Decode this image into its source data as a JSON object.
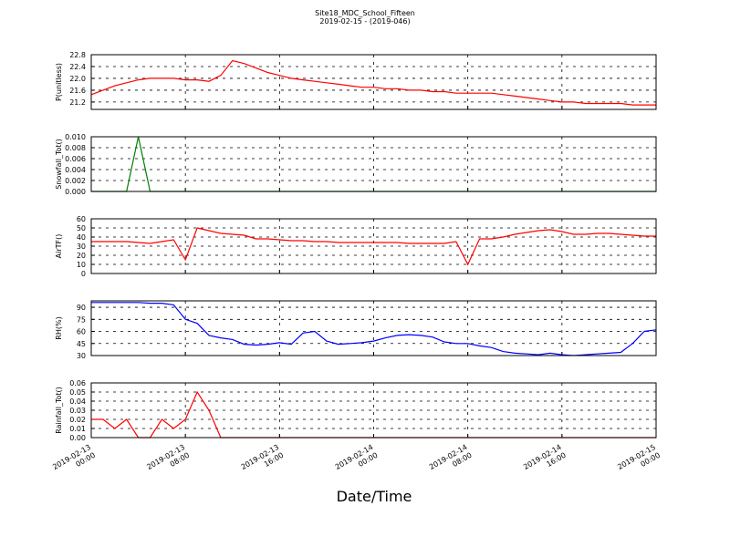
{
  "chart_data": [
    {
      "type": "line",
      "title": "Site18_MDC_School_Fifteen",
      "subtitle": "2019-02-15 - (2019-046)",
      "ylabel": "P(unitless)",
      "color": "#ff0000",
      "grid": true,
      "x": [
        "2019-02-13 00:00",
        "2019-02-13 01:00",
        "2019-02-13 02:00",
        "2019-02-13 03:00",
        "2019-02-13 04:00",
        "2019-02-13 05:00",
        "2019-02-13 06:00",
        "2019-02-13 07:00",
        "2019-02-13 08:00",
        "2019-02-13 09:00",
        "2019-02-13 10:00",
        "2019-02-13 11:00",
        "2019-02-13 12:00",
        "2019-02-13 13:00",
        "2019-02-13 14:00",
        "2019-02-13 15:00",
        "2019-02-13 16:00",
        "2019-02-13 17:00",
        "2019-02-13 18:00",
        "2019-02-13 19:00",
        "2019-02-13 20:00",
        "2019-02-13 21:00",
        "2019-02-13 22:00",
        "2019-02-13 23:00",
        "2019-02-14 00:00",
        "2019-02-14 01:00",
        "2019-02-14 02:00",
        "2019-02-14 03:00",
        "2019-02-14 04:00",
        "2019-02-14 05:00",
        "2019-02-14 06:00",
        "2019-02-14 07:00",
        "2019-02-14 08:00",
        "2019-02-14 09:00",
        "2019-02-14 10:00",
        "2019-02-14 11:00",
        "2019-02-14 12:00",
        "2019-02-14 13:00",
        "2019-02-14 14:00",
        "2019-02-14 15:00",
        "2019-02-14 16:00",
        "2019-02-14 17:00",
        "2019-02-14 18:00",
        "2019-02-14 19:00",
        "2019-02-14 20:00",
        "2019-02-14 21:00",
        "2019-02-14 22:00",
        "2019-02-14 23:00",
        "2019-02-15 00:00"
      ],
      "values": [
        21.45,
        21.6,
        21.75,
        21.85,
        21.95,
        22.0,
        22.0,
        22.0,
        21.95,
        21.95,
        21.9,
        22.1,
        22.6,
        22.5,
        22.35,
        22.2,
        22.1,
        22.0,
        21.95,
        21.9,
        21.85,
        21.8,
        21.75,
        21.7,
        21.7,
        21.65,
        21.65,
        21.6,
        21.6,
        21.55,
        21.55,
        21.5,
        21.5,
        21.5,
        21.5,
        21.45,
        21.4,
        21.35,
        21.3,
        21.25,
        21.2,
        21.2,
        21.15,
        21.15,
        21.15,
        21.15,
        21.1,
        21.1,
        21.1
      ],
      "ylim": [
        20.95,
        22.8
      ],
      "yticks": [
        {
          "value": 21.2,
          "label": "21.2"
        },
        {
          "value": 21.6,
          "label": "21.6"
        },
        {
          "value": 22.0,
          "label": "22.0"
        },
        {
          "value": 22.4,
          "label": "22.4"
        },
        {
          "value": 22.8,
          "label": "22.8"
        }
      ]
    },
    {
      "type": "line",
      "ylabel": "Snowfall_Tot()",
      "color": "#008000",
      "grid": true,
      "x": [
        "2019-02-13 00:00",
        "2019-02-13 01:00",
        "2019-02-13 02:00",
        "2019-02-13 03:00",
        "2019-02-13 04:00",
        "2019-02-13 05:00",
        "2019-02-13 06:00",
        "2019-02-13 07:00",
        "2019-02-13 08:00",
        "2019-02-13 09:00",
        "2019-02-13 10:00",
        "2019-02-13 11:00",
        "2019-02-13 12:00",
        "2019-02-13 13:00",
        "2019-02-13 14:00",
        "2019-02-13 15:00",
        "2019-02-13 16:00",
        "2019-02-13 17:00",
        "2019-02-13 18:00",
        "2019-02-13 19:00",
        "2019-02-13 20:00",
        "2019-02-13 21:00",
        "2019-02-13 22:00",
        "2019-02-13 23:00",
        "2019-02-14 00:00",
        "2019-02-14 01:00",
        "2019-02-14 02:00",
        "2019-02-14 03:00",
        "2019-02-14 04:00",
        "2019-02-14 05:00",
        "2019-02-14 06:00",
        "2019-02-14 07:00",
        "2019-02-14 08:00",
        "2019-02-14 09:00",
        "2019-02-14 10:00",
        "2019-02-14 11:00",
        "2019-02-14 12:00",
        "2019-02-14 13:00",
        "2019-02-14 14:00",
        "2019-02-14 15:00",
        "2019-02-14 16:00",
        "2019-02-14 17:00",
        "2019-02-14 18:00",
        "2019-02-14 19:00",
        "2019-02-14 20:00",
        "2019-02-14 21:00",
        "2019-02-14 22:00",
        "2019-02-14 23:00",
        "2019-02-15 00:00"
      ],
      "values": [
        0,
        0,
        0,
        0,
        0.01,
        0,
        0,
        0,
        0,
        0,
        0,
        0,
        0,
        0,
        0,
        0,
        0,
        0,
        0,
        0,
        0,
        0,
        0,
        0,
        0,
        0,
        0,
        0,
        0,
        0,
        0,
        0,
        0,
        0,
        0,
        0,
        0,
        0,
        0,
        0,
        0,
        0,
        0,
        0,
        0,
        0,
        0,
        0,
        0
      ],
      "ylim": [
        0,
        0.01
      ],
      "yticks": [
        {
          "value": 0,
          "label": "0.000"
        },
        {
          "value": 0.002,
          "label": "0.002"
        },
        {
          "value": 0.004,
          "label": "0.004"
        },
        {
          "value": 0.006,
          "label": "0.006"
        },
        {
          "value": 0.008,
          "label": "0.008"
        },
        {
          "value": 0.01,
          "label": "0.010"
        }
      ]
    },
    {
      "type": "line",
      "ylabel": "AirTF()",
      "color": "#ff0000",
      "grid": true,
      "x": [
        "2019-02-13 00:00",
        "2019-02-13 01:00",
        "2019-02-13 02:00",
        "2019-02-13 03:00",
        "2019-02-13 04:00",
        "2019-02-13 05:00",
        "2019-02-13 06:00",
        "2019-02-13 07:00",
        "2019-02-13 08:00",
        "2019-02-13 09:00",
        "2019-02-13 10:00",
        "2019-02-13 11:00",
        "2019-02-13 12:00",
        "2019-02-13 13:00",
        "2019-02-13 14:00",
        "2019-02-13 15:00",
        "2019-02-13 16:00",
        "2019-02-13 17:00",
        "2019-02-13 18:00",
        "2019-02-13 19:00",
        "2019-02-13 20:00",
        "2019-02-13 21:00",
        "2019-02-13 22:00",
        "2019-02-13 23:00",
        "2019-02-14 00:00",
        "2019-02-14 01:00",
        "2019-02-14 02:00",
        "2019-02-14 03:00",
        "2019-02-14 04:00",
        "2019-02-14 05:00",
        "2019-02-14 06:00",
        "2019-02-14 07:00",
        "2019-02-14 08:00",
        "2019-02-14 09:00",
        "2019-02-14 10:00",
        "2019-02-14 11:00",
        "2019-02-14 12:00",
        "2019-02-14 13:00",
        "2019-02-14 14:00",
        "2019-02-14 15:00",
        "2019-02-14 16:00",
        "2019-02-14 17:00",
        "2019-02-14 18:00",
        "2019-02-14 19:00",
        "2019-02-14 20:00",
        "2019-02-14 21:00",
        "2019-02-14 22:00",
        "2019-02-14 23:00",
        "2019-02-15 00:00"
      ],
      "values": [
        35,
        35,
        35,
        35,
        34,
        33,
        35,
        37,
        15,
        50,
        47,
        44,
        43,
        42,
        38,
        38,
        37,
        36,
        36,
        35,
        35,
        34,
        34,
        34,
        34,
        34,
        34,
        33,
        33,
        33,
        33,
        35,
        10,
        38,
        38,
        40,
        43,
        45,
        47,
        48,
        46,
        43,
        43,
        44,
        44,
        43,
        42,
        41,
        41
      ],
      "ylim": [
        0,
        60
      ],
      "yticks": [
        0,
        10,
        20,
        30,
        40,
        50,
        60
      ]
    },
    {
      "type": "line",
      "ylabel": "RH(%)",
      "color": "#0000ff",
      "grid": true,
      "x": [
        "2019-02-13 00:00",
        "2019-02-13 01:00",
        "2019-02-13 02:00",
        "2019-02-13 03:00",
        "2019-02-13 04:00",
        "2019-02-13 05:00",
        "2019-02-13 06:00",
        "2019-02-13 07:00",
        "2019-02-13 08:00",
        "2019-02-13 09:00",
        "2019-02-13 10:00",
        "2019-02-13 11:00",
        "2019-02-13 12:00",
        "2019-02-13 13:00",
        "2019-02-13 14:00",
        "2019-02-13 15:00",
        "2019-02-13 16:00",
        "2019-02-13 17:00",
        "2019-02-13 18:00",
        "2019-02-13 19:00",
        "2019-02-13 20:00",
        "2019-02-13 21:00",
        "2019-02-13 22:00",
        "2019-02-13 23:00",
        "2019-02-14 00:00",
        "2019-02-14 01:00",
        "2019-02-14 02:00",
        "2019-02-14 03:00",
        "2019-02-14 04:00",
        "2019-02-14 05:00",
        "2019-02-14 06:00",
        "2019-02-14 07:00",
        "2019-02-14 08:00",
        "2019-02-14 09:00",
        "2019-02-14 10:00",
        "2019-02-14 11:00",
        "2019-02-14 12:00",
        "2019-02-14 13:00",
        "2019-02-14 14:00",
        "2019-02-14 15:00",
        "2019-02-14 16:00",
        "2019-02-14 17:00",
        "2019-02-14 18:00",
        "2019-02-14 19:00",
        "2019-02-14 20:00",
        "2019-02-14 21:00",
        "2019-02-14 22:00",
        "2019-02-14 23:00",
        "2019-02-15 00:00"
      ],
      "values": [
        96,
        96,
        96,
        96,
        96,
        95,
        95,
        93,
        75,
        70,
        55,
        52,
        50,
        44,
        43,
        44,
        46,
        44,
        58,
        60,
        48,
        44,
        45,
        46,
        48,
        52,
        55,
        56,
        55,
        53,
        47,
        45,
        45,
        42,
        40,
        35,
        33,
        32,
        31,
        33,
        31,
        30,
        31,
        32,
        33,
        34,
        45,
        60,
        62
      ],
      "ylim": [
        30,
        98
      ],
      "yticks": [
        30,
        45,
        60,
        75,
        90
      ]
    },
    {
      "type": "line",
      "ylabel": "Rainfall_Tot()",
      "xlabel": "Date/Time",
      "color": "#ff0000",
      "grid": true,
      "x": [
        "2019-02-13 00:00",
        "2019-02-13 01:00",
        "2019-02-13 02:00",
        "2019-02-13 03:00",
        "2019-02-13 04:00",
        "2019-02-13 05:00",
        "2019-02-13 06:00",
        "2019-02-13 07:00",
        "2019-02-13 08:00",
        "2019-02-13 09:00",
        "2019-02-13 10:00",
        "2019-02-13 11:00",
        "2019-02-13 12:00",
        "2019-02-13 13:00",
        "2019-02-13 14:00",
        "2019-02-13 15:00",
        "2019-02-13 16:00",
        "2019-02-13 17:00",
        "2019-02-13 18:00",
        "2019-02-13 19:00",
        "2019-02-13 20:00",
        "2019-02-13 21:00",
        "2019-02-13 22:00",
        "2019-02-13 23:00",
        "2019-02-14 00:00",
        "2019-02-14 01:00",
        "2019-02-14 02:00",
        "2019-02-14 03:00",
        "2019-02-14 04:00",
        "2019-02-14 05:00",
        "2019-02-14 06:00",
        "2019-02-14 07:00",
        "2019-02-14 08:00",
        "2019-02-14 09:00",
        "2019-02-14 10:00",
        "2019-02-14 11:00",
        "2019-02-14 12:00",
        "2019-02-14 13:00",
        "2019-02-14 14:00",
        "2019-02-14 15:00",
        "2019-02-14 16:00",
        "2019-02-14 17:00",
        "2019-02-14 18:00",
        "2019-02-14 19:00",
        "2019-02-14 20:00",
        "2019-02-14 21:00",
        "2019-02-14 22:00",
        "2019-02-14 23:00",
        "2019-02-15 00:00"
      ],
      "values": [
        0.02,
        0.02,
        0.01,
        0.02,
        0,
        0,
        0.02,
        0.01,
        0.02,
        0.05,
        0.03,
        0,
        0,
        0,
        0,
        0,
        0,
        0,
        0,
        0,
        0,
        0,
        0,
        0,
        0,
        0,
        0,
        0,
        0,
        0,
        0,
        0,
        0,
        0,
        0,
        0,
        0,
        0,
        0,
        0,
        0,
        0,
        0,
        0,
        0,
        0,
        0,
        0,
        0
      ],
      "ylim": [
        0,
        0.06
      ],
      "yticks": [
        {
          "value": 0,
          "label": "0.00"
        },
        {
          "value": 0.01,
          "label": "0.01"
        },
        {
          "value": 0.02,
          "label": "0.02"
        },
        {
          "value": 0.03,
          "label": "0.03"
        },
        {
          "value": 0.04,
          "label": "0.04"
        },
        {
          "value": 0.05,
          "label": "0.05"
        },
        {
          "value": 0.06,
          "label": "0.06"
        }
      ],
      "xlim": [
        "2019-02-13 00:00",
        "2019-02-15 00:00"
      ],
      "xticks": [
        "2019-02-13 00:00",
        "2019-02-13 08:00",
        "2019-02-13 16:00",
        "2019-02-14 00:00",
        "2019-02-14 08:00",
        "2019-02-14 16:00",
        "2019-02-15 00:00"
      ]
    }
  ]
}
